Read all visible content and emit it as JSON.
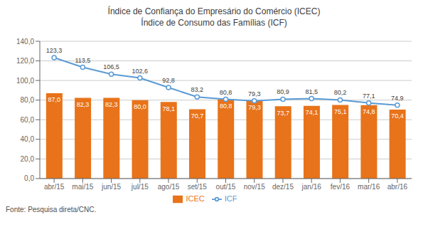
{
  "chart_data": {
    "type": "bar",
    "title": "Índice de Confiança do Empresário do Comércio (ICEC)\nÍndice de Consumo das Famílias (ICF)",
    "categories": [
      "abr/15",
      "mai/15",
      "jun/15",
      "jul/15",
      "ago/15",
      "set/15",
      "out/15",
      "nov/15",
      "dez/15",
      "jan/16",
      "fev/16",
      "mar/16",
      "abr/16"
    ],
    "series": [
      {
        "name": "ICEC",
        "type": "bar",
        "color": "#E8731A",
        "values": [
          87.0,
          82.3,
          82.3,
          80.0,
          78.1,
          70.7,
          80.8,
          79.3,
          73.7,
          74.1,
          75.1,
          74.8,
          70.4
        ],
        "value_labels": [
          "87,0",
          "82,3",
          "82,3",
          "80,0",
          "78,1",
          "70,7",
          "80,8",
          "79,3",
          "73,7",
          "74,1",
          "75,1",
          "74,8",
          "70,4"
        ]
      },
      {
        "name": "ICF",
        "type": "line",
        "color": "#5B9BD5",
        "marker": "circle",
        "values": [
          123.3,
          113.5,
          106.5,
          102.6,
          92.8,
          83.2,
          80.8,
          79.3,
          80.9,
          81.5,
          80.2,
          77.1,
          74.9
        ],
        "value_labels": [
          "123,3",
          "113,5",
          "106,5",
          "102,6",
          "92,8",
          "83,2",
          "80,8",
          "79,3",
          "80,9",
          "81,5",
          "80,2",
          "77,1",
          "74,9"
        ]
      }
    ],
    "ylim": [
      0,
      140
    ],
    "yticks": [
      {
        "value": 0,
        "label": "0,0"
      },
      {
        "value": 20,
        "label": "20,0"
      },
      {
        "value": 40,
        "label": "40,0"
      },
      {
        "value": 60,
        "label": "60,0"
      },
      {
        "value": 80,
        "label": "80,0"
      },
      {
        "value": 100,
        "label": "100,0"
      },
      {
        "value": 120,
        "label": "120,0"
      },
      {
        "value": 140,
        "label": "140,0"
      }
    ],
    "grid": true,
    "legend": "bottom",
    "data_labels": true,
    "annotations": [
      "Fonte: Pesquisa direta/CNC."
    ]
  }
}
